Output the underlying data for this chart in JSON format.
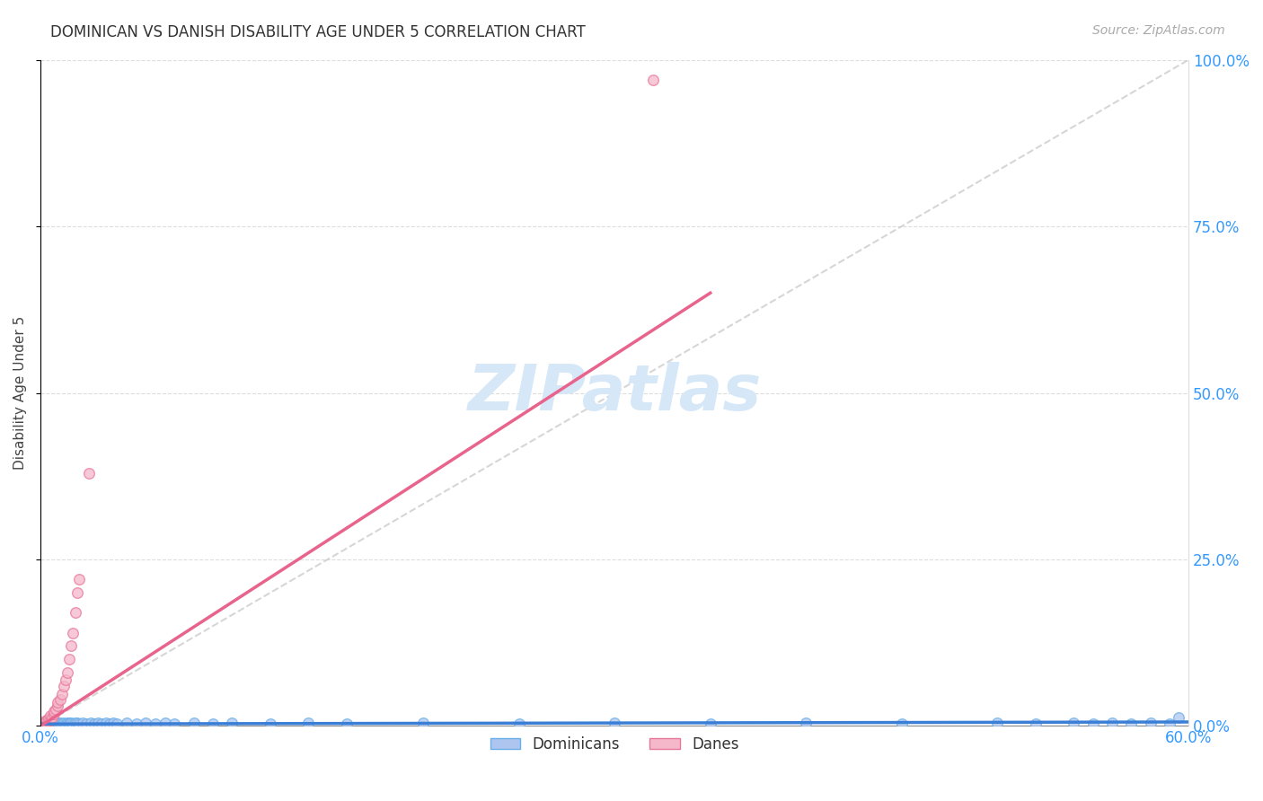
{
  "title": "DOMINICAN VS DANISH DISABILITY AGE UNDER 5 CORRELATION CHART",
  "source": "Source: ZipAtlas.com",
  "ylabel": "Disability Age Under 5",
  "xlim": [
    0.0,
    0.6
  ],
  "ylim": [
    0.0,
    1.0
  ],
  "xticks": [
    0.0,
    0.6
  ],
  "xticklabels": [
    "0.0%",
    "60.0%"
  ],
  "yticks": [
    0.0,
    0.25,
    0.5,
    0.75,
    1.0
  ],
  "yticklabels_right": [
    "0.0%",
    "25.0%",
    "50.0%",
    "75.0%",
    "100.0%"
  ],
  "legend_color1": "#aec6ef",
  "legend_color2": "#f5b8cb",
  "dominicans_scatter_color": "#aec6ef",
  "dominicans_edge_color": "#6aaee8",
  "danes_scatter_color": "#f5b8cb",
  "danes_edge_color": "#e8789a",
  "line_dominicans_color": "#3a7fd5",
  "line_danes_color": "#e8648c",
  "diag_color": "#cccccc",
  "watermark": "ZIPatlas",
  "watermark_color": "#d6e8f8",
  "grid_color": "#dddddd",
  "dominicans_x": [
    0.001,
    0.002,
    0.002,
    0.003,
    0.003,
    0.004,
    0.004,
    0.005,
    0.005,
    0.006,
    0.006,
    0.007,
    0.007,
    0.008,
    0.008,
    0.009,
    0.009,
    0.01,
    0.01,
    0.011,
    0.012,
    0.013,
    0.014,
    0.015,
    0.015,
    0.016,
    0.017,
    0.018,
    0.019,
    0.02,
    0.022,
    0.024,
    0.026,
    0.028,
    0.03,
    0.032,
    0.034,
    0.036,
    0.038,
    0.04,
    0.045,
    0.05,
    0.055,
    0.06,
    0.065,
    0.07,
    0.08,
    0.09,
    0.1,
    0.12,
    0.14,
    0.16,
    0.2,
    0.25,
    0.3,
    0.35,
    0.4,
    0.45,
    0.5,
    0.52,
    0.54,
    0.55,
    0.56,
    0.57,
    0.58,
    0.59,
    0.595,
    0.003,
    0.005
  ],
  "dominicans_y": [
    0.003,
    0.004,
    0.003,
    0.005,
    0.004,
    0.003,
    0.004,
    0.005,
    0.003,
    0.004,
    0.005,
    0.003,
    0.004,
    0.005,
    0.003,
    0.004,
    0.005,
    0.003,
    0.004,
    0.003,
    0.004,
    0.003,
    0.004,
    0.005,
    0.003,
    0.004,
    0.003,
    0.004,
    0.005,
    0.003,
    0.004,
    0.003,
    0.004,
    0.003,
    0.004,
    0.003,
    0.004,
    0.003,
    0.004,
    0.003,
    0.004,
    0.003,
    0.004,
    0.003,
    0.004,
    0.003,
    0.004,
    0.003,
    0.004,
    0.003,
    0.004,
    0.003,
    0.004,
    0.003,
    0.004,
    0.003,
    0.004,
    0.003,
    0.004,
    0.003,
    0.004,
    0.003,
    0.004,
    0.003,
    0.004,
    0.003,
    0.013,
    0.008,
    0.007
  ],
  "danes_x": [
    0.001,
    0.001,
    0.002,
    0.002,
    0.003,
    0.003,
    0.004,
    0.004,
    0.005,
    0.005,
    0.006,
    0.007,
    0.007,
    0.008,
    0.009,
    0.009,
    0.01,
    0.011,
    0.012,
    0.013,
    0.014,
    0.015,
    0.016,
    0.017,
    0.018,
    0.019,
    0.02,
    0.025,
    0.32
  ],
  "danes_y": [
    0.003,
    0.005,
    0.004,
    0.007,
    0.005,
    0.009,
    0.007,
    0.012,
    0.009,
    0.016,
    0.013,
    0.018,
    0.022,
    0.025,
    0.03,
    0.035,
    0.04,
    0.048,
    0.06,
    0.07,
    0.08,
    0.1,
    0.12,
    0.14,
    0.17,
    0.2,
    0.22,
    0.38,
    0.97
  ],
  "danes_line_x0": 0.0,
  "danes_line_y0": 0.0,
  "danes_line_x1": 0.35,
  "danes_line_y1": 0.65,
  "dom_line_x0": 0.0,
  "dom_line_y0": 0.003,
  "dom_line_x1": 0.6,
  "dom_line_y1": 0.006
}
